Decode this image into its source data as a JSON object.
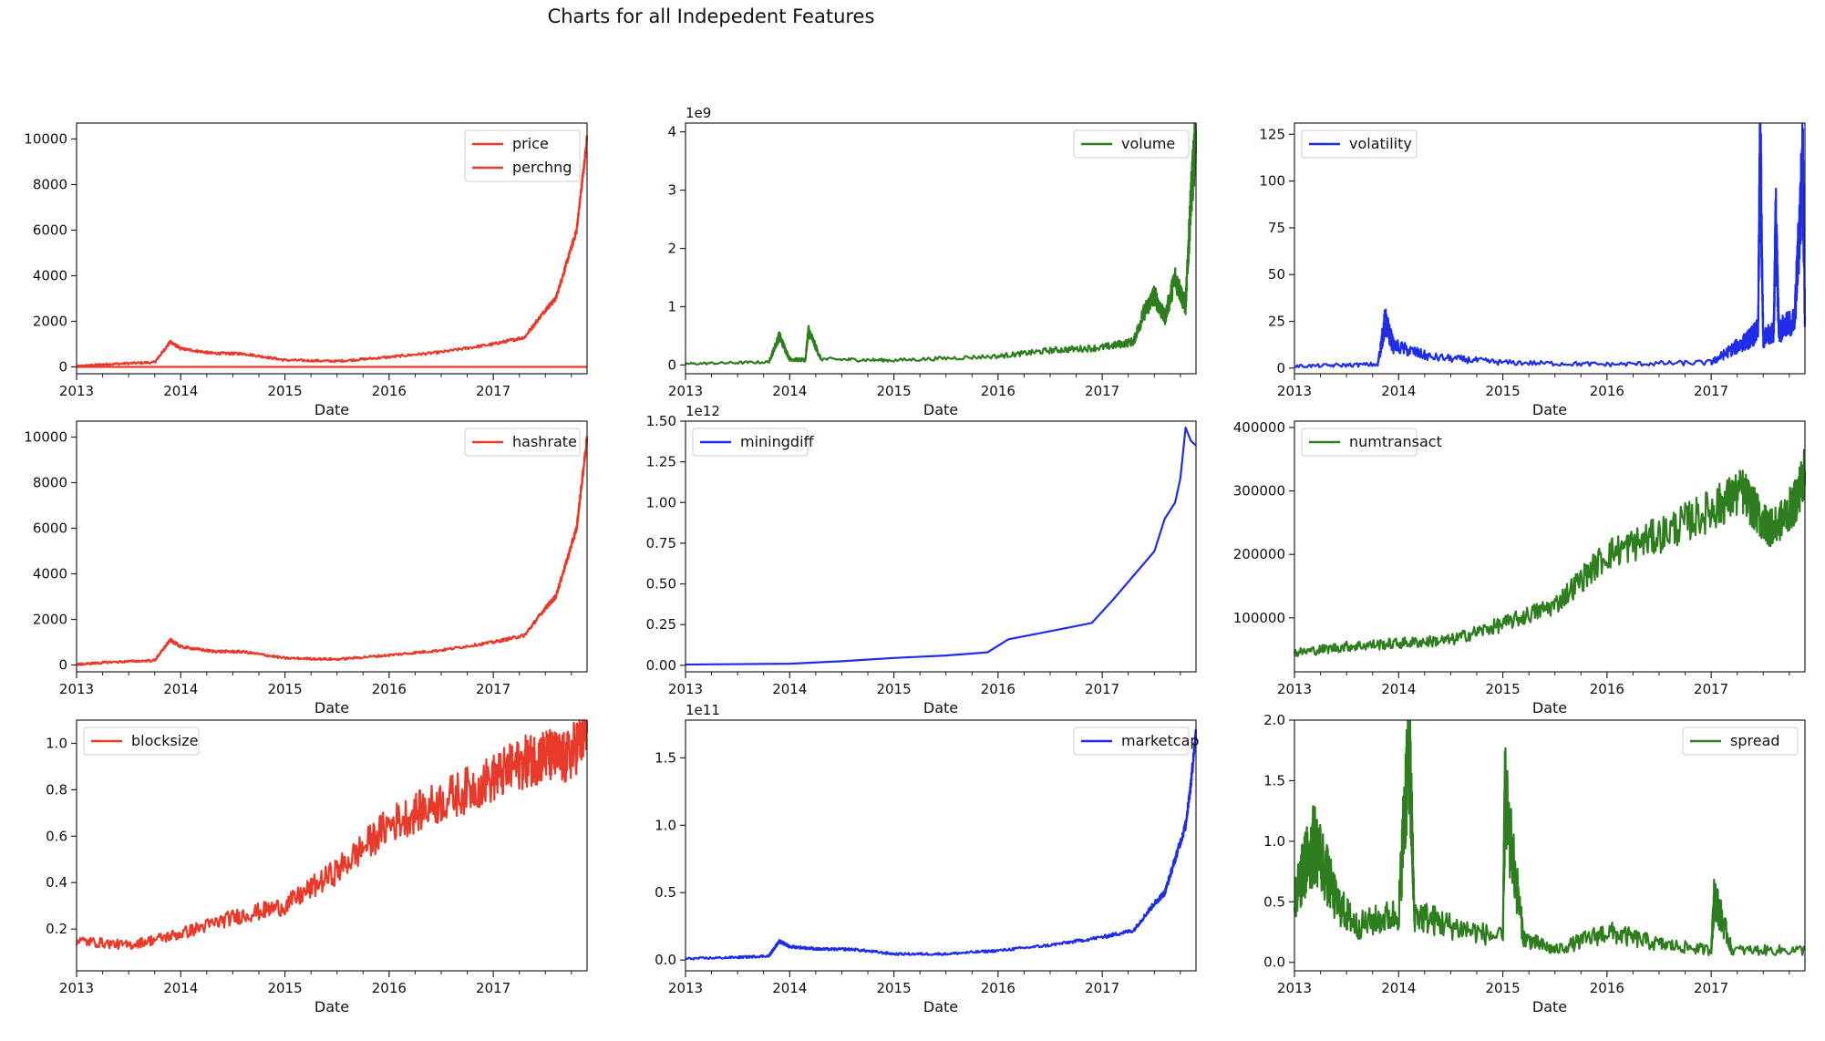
{
  "figure": {
    "title": "Charts for all Indepedent Features"
  },
  "colors": {
    "red": "#e8392a",
    "green": "#2e7d1e",
    "blue": "#1f2ce8"
  },
  "chart_data": [
    {
      "type": "line",
      "title": "",
      "xlabel": "Date",
      "ylabel": "",
      "xlim": [
        2013,
        2017.9
      ],
      "ylim": [
        -300,
        10700
      ],
      "exponent": "",
      "yticks": [
        0,
        2000,
        4000,
        6000,
        8000,
        10000
      ],
      "ytick_labels": [
        "0",
        "2000",
        "4000",
        "6000",
        "8000",
        "10000"
      ],
      "xticks": [
        2013,
        2014,
        2015,
        2016,
        2017
      ],
      "xtick_labels": [
        "2013",
        "2014",
        "2015",
        "2016",
        "2017"
      ],
      "legend_position": "upper-right",
      "series": [
        {
          "name": "price",
          "color": "#e8392a",
          "noise": 0.02,
          "x": [
            2013.0,
            2013.3,
            2013.75,
            2013.9,
            2014.0,
            2014.3,
            2014.6,
            2015.0,
            2015.5,
            2016.0,
            2016.5,
            2017.0,
            2017.3,
            2017.5,
            2017.6,
            2017.7,
            2017.8,
            2017.85,
            2017.9
          ],
          "y": [
            20,
            120,
            200,
            1100,
            800,
            600,
            580,
            300,
            250,
            430,
            650,
            1000,
            1300,
            2500,
            3000,
            4500,
            6000,
            8000,
            10000
          ]
        },
        {
          "name": "perchng",
          "color": "#e8392a",
          "noise": 0,
          "x": [
            2013.0,
            2017.9
          ],
          "y": [
            0,
            0
          ]
        }
      ]
    },
    {
      "type": "line",
      "title": "",
      "xlabel": "Date",
      "ylabel": "",
      "xlim": [
        2013,
        2017.9
      ],
      "ylim": [
        -0.15,
        4.15
      ],
      "exponent": "1e9",
      "yticks": [
        0,
        1,
        2,
        3,
        4
      ],
      "ytick_labels": [
        "0",
        "1",
        "2",
        "3",
        "4"
      ],
      "xticks": [
        2013,
        2014,
        2015,
        2016,
        2017
      ],
      "xtick_labels": [
        "2013",
        "2014",
        "2015",
        "2016",
        "2017"
      ],
      "legend_position": "upper-right",
      "series": [
        {
          "name": "volume",
          "color": "#2e7d1e",
          "noise": 0.14,
          "x": [
            2013.0,
            2013.8,
            2013.9,
            2014.0,
            2014.15,
            2014.18,
            2014.3,
            2015.0,
            2016.0,
            2016.5,
            2017.0,
            2017.3,
            2017.4,
            2017.5,
            2017.6,
            2017.7,
            2017.8,
            2017.85,
            2017.9
          ],
          "y": [
            0.02,
            0.05,
            0.5,
            0.1,
            0.08,
            0.6,
            0.1,
            0.08,
            0.15,
            0.25,
            0.3,
            0.4,
            0.9,
            1.2,
            0.8,
            1.5,
            1.0,
            2.8,
            4.0
          ]
        }
      ]
    },
    {
      "type": "line",
      "title": "",
      "xlabel": "Date",
      "ylabel": "",
      "xlim": [
        2013,
        2017.9
      ],
      "ylim": [
        -3,
        131
      ],
      "exponent": "",
      "yticks": [
        0,
        25,
        50,
        75,
        100,
        125
      ],
      "ytick_labels": [
        "0",
        "25",
        "50",
        "75",
        "100",
        "125"
      ],
      "xticks": [
        2013,
        2014,
        2015,
        2016,
        2017
      ],
      "xtick_labels": [
        "2013",
        "2014",
        "2015",
        "2016",
        "2017"
      ],
      "legend_position": "upper-left",
      "series": [
        {
          "name": "volatility",
          "color": "#1f2ce8",
          "noise": 0.3,
          "x": [
            2013.0,
            2013.8,
            2013.87,
            2013.95,
            2014.3,
            2015.0,
            2016.0,
            2017.0,
            2017.2,
            2017.35,
            2017.45,
            2017.47,
            2017.5,
            2017.6,
            2017.62,
            2017.65,
            2017.8,
            2017.88,
            2017.9
          ],
          "y": [
            1,
            2,
            25,
            12,
            6,
            3,
            2,
            3,
            10,
            15,
            20,
            128,
            15,
            20,
            80,
            20,
            25,
            108,
            25
          ]
        }
      ]
    },
    {
      "type": "line",
      "title": "",
      "xlabel": "Date",
      "ylabel": "",
      "xlim": [
        2013,
        2017.9
      ],
      "ylim": [
        -300,
        10700
      ],
      "exponent": "",
      "yticks": [
        0,
        2000,
        4000,
        6000,
        8000,
        10000
      ],
      "ytick_labels": [
        "0",
        "2000",
        "4000",
        "6000",
        "8000",
        "10000"
      ],
      "xticks": [
        2013,
        2014,
        2015,
        2016,
        2017
      ],
      "xtick_labels": [
        "2013",
        "2014",
        "2015",
        "2016",
        "2017"
      ],
      "legend_position": "upper-right",
      "series": [
        {
          "name": "hashrate",
          "color": "#e8392a",
          "noise": 0.02,
          "x": [
            2013.0,
            2013.3,
            2013.75,
            2013.9,
            2014.0,
            2014.3,
            2014.6,
            2015.0,
            2015.5,
            2016.0,
            2016.5,
            2017.0,
            2017.3,
            2017.5,
            2017.6,
            2017.7,
            2017.8,
            2017.85,
            2017.9
          ],
          "y": [
            20,
            120,
            200,
            1100,
            800,
            600,
            580,
            300,
            250,
            430,
            650,
            1000,
            1300,
            2500,
            3000,
            4500,
            6000,
            8000,
            10000
          ]
        }
      ]
    },
    {
      "type": "line",
      "title": "",
      "xlabel": "Date",
      "ylabel": "",
      "xlim": [
        2013,
        2017.9
      ],
      "ylim": [
        -0.04,
        1.5
      ],
      "exponent": "1e12",
      "yticks": [
        0,
        0.25,
        0.5,
        0.75,
        1.0,
        1.25,
        1.5
      ],
      "ytick_labels": [
        "0.00",
        "0.25",
        "0.50",
        "0.75",
        "1.00",
        "1.25",
        "1.50"
      ],
      "xticks": [
        2013,
        2014,
        2015,
        2016,
        2017
      ],
      "xtick_labels": [
        "2013",
        "2014",
        "2015",
        "2016",
        "2017"
      ],
      "legend_position": "upper-left",
      "series": [
        {
          "name": "miningdiff",
          "color": "#1f2ce8",
          "noise": 0,
          "x": [
            2013.0,
            2014.0,
            2014.5,
            2015.0,
            2015.5,
            2015.9,
            2016.1,
            2016.5,
            2016.9,
            2017.1,
            2017.3,
            2017.5,
            2017.6,
            2017.7,
            2017.75,
            2017.8,
            2017.85,
            2017.9
          ],
          "y": [
            0.005,
            0.01,
            0.025,
            0.045,
            0.06,
            0.08,
            0.16,
            0.21,
            0.26,
            0.4,
            0.55,
            0.7,
            0.9,
            1.0,
            1.15,
            1.46,
            1.38,
            1.35
          ]
        }
      ]
    },
    {
      "type": "line",
      "title": "",
      "xlabel": "Date",
      "ylabel": "",
      "xlim": [
        2013,
        2017.9
      ],
      "ylim": [
        15000,
        410000
      ],
      "exponent": "",
      "yticks": [
        100000,
        200000,
        300000,
        400000
      ],
      "ytick_labels": [
        "100000",
        "200000",
        "300000",
        "400000"
      ],
      "xticks": [
        2013,
        2014,
        2015,
        2016,
        2017
      ],
      "xtick_labels": [
        "2013",
        "2014",
        "2015",
        "2016",
        "2017"
      ],
      "legend_position": "upper-left",
      "series": [
        {
          "name": "numtransact",
          "color": "#2e7d1e",
          "noise": 0.12,
          "x": [
            2013.0,
            2013.5,
            2014.0,
            2014.5,
            2015.0,
            2015.5,
            2016.0,
            2016.5,
            2017.0,
            2017.3,
            2017.5,
            2017.6,
            2017.8,
            2017.9
          ],
          "y": [
            45000,
            55000,
            60000,
            65000,
            90000,
            120000,
            200000,
            230000,
            270000,
            300000,
            250000,
            240000,
            280000,
            330000
          ]
        }
      ]
    },
    {
      "type": "line",
      "title": "",
      "xlabel": "Date",
      "ylabel": "",
      "xlim": [
        2013,
        2017.9
      ],
      "ylim": [
        0.02,
        1.1
      ],
      "exponent": "",
      "yticks": [
        0.2,
        0.4,
        0.6,
        0.8,
        1.0
      ],
      "ytick_labels": [
        "0.2",
        "0.4",
        "0.6",
        "0.8",
        "1.0"
      ],
      "xticks": [
        2013,
        2014,
        2015,
        2016,
        2017
      ],
      "xtick_labels": [
        "2013",
        "2014",
        "2015",
        "2016",
        "2017"
      ],
      "legend_position": "upper-left",
      "series": [
        {
          "name": "blocksize",
          "color": "#e8392a",
          "noise": 0.12,
          "x": [
            2013.0,
            2013.5,
            2014.0,
            2014.5,
            2015.0,
            2015.5,
            2016.0,
            2016.5,
            2017.0,
            2017.3,
            2017.5,
            2017.7,
            2017.9
          ],
          "y": [
            0.15,
            0.13,
            0.18,
            0.25,
            0.3,
            0.45,
            0.65,
            0.75,
            0.85,
            0.92,
            0.95,
            0.93,
            1.05
          ]
        }
      ]
    },
    {
      "type": "line",
      "title": "",
      "xlabel": "Date",
      "ylabel": "",
      "xlim": [
        2013,
        2017.9
      ],
      "ylim": [
        -0.08,
        1.78
      ],
      "exponent": "1e11",
      "yticks": [
        0,
        0.5,
        1.0,
        1.5
      ],
      "ytick_labels": [
        "0.0",
        "0.5",
        "1.0",
        "1.5"
      ],
      "xticks": [
        2013,
        2014,
        2015,
        2016,
        2017
      ],
      "xtick_labels": [
        "2013",
        "2014",
        "2015",
        "2016",
        "2017"
      ],
      "legend_position": "upper-right",
      "series": [
        {
          "name": "marketcap",
          "color": "#1f2ce8",
          "noise": 0.03,
          "x": [
            2013.0,
            2013.5,
            2013.8,
            2013.9,
            2014.0,
            2014.3,
            2014.6,
            2015.0,
            2015.5,
            2016.0,
            2016.5,
            2017.0,
            2017.3,
            2017.5,
            2017.6,
            2017.7,
            2017.8,
            2017.85,
            2017.9
          ],
          "y": [
            0.01,
            0.02,
            0.03,
            0.14,
            0.1,
            0.08,
            0.08,
            0.045,
            0.045,
            0.07,
            0.11,
            0.17,
            0.22,
            0.42,
            0.5,
            0.75,
            1.0,
            1.3,
            1.7
          ]
        }
      ]
    },
    {
      "type": "line",
      "title": "",
      "xlabel": "Date",
      "ylabel": "",
      "xlim": [
        2013,
        2017.9
      ],
      "ylim": [
        -0.07,
        2.0
      ],
      "exponent": "",
      "yticks": [
        0,
        0.5,
        1.0,
        1.5,
        2.0
      ],
      "ytick_labels": [
        "0.0",
        "0.5",
        "1.0",
        "1.5",
        "2.0"
      ],
      "xticks": [
        2013,
        2014,
        2015,
        2016,
        2017
      ],
      "xtick_labels": [
        "2013",
        "2014",
        "2015",
        "2016",
        "2017"
      ],
      "legend_position": "upper-right",
      "series": [
        {
          "name": "spread",
          "color": "#2e7d1e",
          "noise": 0.35,
          "x": [
            2013.0,
            2013.1,
            2013.2,
            2013.4,
            2013.6,
            2014.0,
            2014.1,
            2014.15,
            2014.5,
            2015.0,
            2015.02,
            2015.2,
            2015.5,
            2016.0,
            2016.5,
            2017.0,
            2017.03,
            2017.2,
            2017.9
          ],
          "y": [
            0.5,
            0.8,
            1.0,
            0.5,
            0.3,
            0.4,
            1.9,
            0.4,
            0.3,
            0.2,
            1.35,
            0.2,
            0.1,
            0.25,
            0.15,
            0.1,
            0.55,
            0.1,
            0.1
          ]
        }
      ]
    }
  ]
}
